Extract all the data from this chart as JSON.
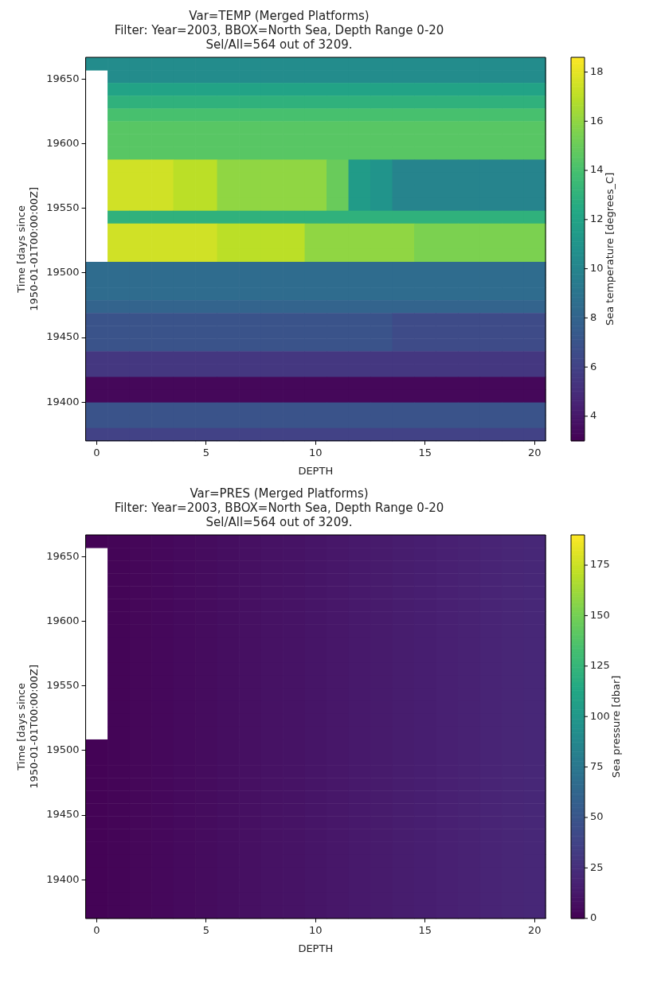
{
  "chart_data": [
    {
      "type": "heatmap",
      "title": "Var=TEMP (Merged Platforms)",
      "subtitle": "Filter: Year=2003, BBOX=North Sea, Depth Range 0-20\nSel/All=564 out of 3209.",
      "xlabel": "DEPTH",
      "ylabel": "Time [days since\n1950-01-01T00:00:00Z]",
      "clabel": "Sea temperature [degrees_C]",
      "x": [
        0,
        1,
        2,
        3,
        4,
        5,
        6,
        7,
        8,
        9,
        10,
        11,
        12,
        13,
        14,
        15,
        16,
        17,
        18,
        19,
        20
      ],
      "xlim": [
        -0.5,
        20.5
      ],
      "xticks": [
        0,
        5,
        10,
        15,
        20
      ],
      "ylim": [
        19370,
        19667
      ],
      "yticks": [
        19400,
        19450,
        19500,
        19550,
        19600,
        19650
      ],
      "clim": [
        3,
        18.6
      ],
      "cticks": [
        4,
        6,
        8,
        10,
        12,
        14,
        16,
        18
      ],
      "cells": [
        [
          10.5,
          10.5,
          10.5,
          10.5,
          10.5,
          10.5,
          10.5,
          10.5,
          10.5,
          10.5,
          10.5,
          10.5,
          10.5,
          10.5,
          10.5,
          10.5,
          10.5,
          10.5,
          10.5,
          10.5,
          10.5
        ],
        [
          null,
          10.5,
          10.5,
          10.5,
          10.5,
          10.5,
          10.5,
          10.5,
          10.5,
          10.5,
          10.5,
          10.5,
          10.5,
          10.5,
          10.5,
          10.5,
          10.5,
          10.5,
          10.5,
          10.5,
          10.5
        ],
        [
          null,
          12,
          12,
          12,
          12,
          12,
          12,
          12,
          12,
          12,
          12,
          12,
          12,
          12,
          12,
          12,
          12,
          12,
          12,
          12,
          12
        ],
        [
          null,
          13,
          13,
          13,
          13,
          13,
          13,
          13,
          13,
          13,
          13,
          13,
          13,
          13,
          13,
          13,
          13,
          13,
          13,
          13,
          13
        ],
        [
          null,
          14,
          14,
          14,
          14,
          14,
          14,
          14,
          14,
          14,
          14,
          14,
          14,
          14,
          14,
          14,
          14,
          14,
          14,
          14,
          14
        ],
        [
          null,
          14.5,
          14.5,
          14.5,
          14.5,
          14.5,
          14.5,
          14.5,
          14.5,
          14.5,
          14.5,
          14.5,
          14.5,
          14.5,
          14.5,
          14.5,
          14.5,
          14.5,
          14.5,
          14.5,
          14.5
        ],
        [
          null,
          14.5,
          14.5,
          14.5,
          14.5,
          14.5,
          14.5,
          14.5,
          14.5,
          14.5,
          14.5,
          14.5,
          14.5,
          14.5,
          14.5,
          14.5,
          14.5,
          14.5,
          14.5,
          14.5,
          14.5
        ],
        [
          null,
          14.5,
          14.5,
          14.5,
          14.5,
          14.5,
          14.5,
          14.5,
          14.5,
          14.5,
          14.5,
          14.5,
          14.5,
          14.5,
          14.5,
          14.5,
          14.5,
          14.5,
          14.5,
          14.5,
          14.5
        ],
        [
          null,
          17.5,
          17.5,
          17.5,
          17,
          17,
          16,
          16,
          16,
          16,
          16,
          15,
          11.5,
          11,
          10,
          10,
          10,
          10,
          10,
          10,
          10
        ],
        [
          null,
          17.5,
          17.5,
          17.5,
          17,
          17,
          16,
          16,
          16,
          16,
          16,
          15,
          11.5,
          11,
          10,
          10,
          10,
          10,
          10,
          10,
          10
        ],
        [
          null,
          17.5,
          17.5,
          17.5,
          17,
          17,
          16,
          16,
          16,
          16,
          16,
          15,
          11.5,
          11,
          10,
          10,
          10,
          10,
          10,
          10,
          10
        ],
        [
          null,
          17.5,
          17.5,
          17.5,
          17,
          17,
          16,
          16,
          16,
          16,
          16,
          15,
          11.5,
          11,
          10,
          10,
          10,
          10,
          10,
          10,
          10
        ],
        [
          null,
          13,
          13,
          13,
          13,
          13,
          13,
          13,
          13,
          13,
          13,
          13,
          13,
          13,
          13,
          13,
          13,
          13,
          13,
          13,
          13
        ],
        [
          null,
          17.5,
          17.5,
          17.5,
          17.5,
          17.5,
          17,
          17,
          17,
          17,
          16,
          16,
          16,
          16,
          16,
          15.5,
          15.5,
          15.5,
          15.5,
          15.5,
          15.5
        ],
        [
          null,
          17.5,
          17.5,
          17.5,
          17.5,
          17.5,
          17,
          17,
          17,
          17,
          16,
          16,
          16,
          16,
          16,
          15.5,
          15.5,
          15.5,
          15.5,
          15.5,
          15.5
        ],
        [
          null,
          17.5,
          17.5,
          17.5,
          17.5,
          17.5,
          17,
          17,
          17,
          17,
          16,
          16,
          16,
          16,
          16,
          15.5,
          15.5,
          15.5,
          15.5,
          15.5,
          15.5
        ],
        [
          8.5,
          8.5,
          8.5,
          8.5,
          8.5,
          8.5,
          8.5,
          8.5,
          8.5,
          8.5,
          8.5,
          8.5,
          8.5,
          8.5,
          8.5,
          8.5,
          8.5,
          8.5,
          8.5,
          8.5,
          8.5
        ],
        [
          8.5,
          8.5,
          8.5,
          8.5,
          8.5,
          8.5,
          8.5,
          8.5,
          8.5,
          8.5,
          8.5,
          8.5,
          8.5,
          8.5,
          8.5,
          8.5,
          8.5,
          8.5,
          8.5,
          8.5,
          8.5
        ],
        [
          8.5,
          8.5,
          8.5,
          8.5,
          8.5,
          8.5,
          8.5,
          8.5,
          8.5,
          8.5,
          8.5,
          8.5,
          8.5,
          8.5,
          8.5,
          8.5,
          8.5,
          8.5,
          8.5,
          8.5,
          8.5
        ],
        [
          8,
          8,
          8,
          8,
          8,
          8,
          8,
          8,
          8,
          8,
          8,
          8,
          8,
          8,
          8,
          8,
          8,
          8,
          8,
          8,
          8
        ],
        [
          7,
          7,
          7,
          7,
          7,
          7,
          7,
          7,
          7,
          7,
          7,
          7,
          7,
          7,
          6.5,
          6.5,
          6.5,
          6.5,
          6.5,
          6.5,
          6.5
        ],
        [
          7,
          7,
          7,
          7,
          7,
          7,
          7,
          7,
          7,
          7,
          7,
          7,
          7,
          7,
          6.5,
          6.5,
          6.5,
          6.5,
          6.5,
          6.5,
          6.5
        ],
        [
          7,
          7,
          7,
          7,
          7,
          7,
          7,
          7,
          7,
          7,
          7,
          7,
          7,
          7,
          6.5,
          6.5,
          6.5,
          6.5,
          6.5,
          6.5,
          6.5
        ],
        [
          5.5,
          5.5,
          5.5,
          5.5,
          5.5,
          5.5,
          5.5,
          5.5,
          5.5,
          5.5,
          5.5,
          5.5,
          5.5,
          5.5,
          5.5,
          5.5,
          5.5,
          5.5,
          5.5,
          5.5,
          5.5
        ],
        [
          5.5,
          5.5,
          5.5,
          5.5,
          5.5,
          5.5,
          5.5,
          5.5,
          5.5,
          5.5,
          5.5,
          5.5,
          5.5,
          5.5,
          5.5,
          5.5,
          5.5,
          5.5,
          5.5,
          5.5,
          5.5
        ],
        [
          3.3,
          3.3,
          3.3,
          3.3,
          3.3,
          3.3,
          3.3,
          3.3,
          3.3,
          3.3,
          3.3,
          3.3,
          3.3,
          3.3,
          3.3,
          3.3,
          3.3,
          3.3,
          3.3,
          3.3,
          3.3
        ],
        [
          3.3,
          3.3,
          3.3,
          3.3,
          3.3,
          3.3,
          3.3,
          3.3,
          3.3,
          3.3,
          3.3,
          3.3,
          3.3,
          3.3,
          3.3,
          3.3,
          3.3,
          3.3,
          3.3,
          3.3,
          3.3
        ],
        [
          7,
          7,
          7,
          7,
          7,
          7,
          7,
          7,
          7,
          7,
          7,
          7,
          7,
          7,
          7,
          7,
          7,
          7,
          7,
          7,
          7
        ],
        [
          7,
          7,
          7,
          7,
          7,
          7,
          7,
          7,
          7,
          7,
          7,
          7,
          7,
          7,
          7,
          7,
          7,
          7,
          7,
          7,
          7
        ],
        [
          6,
          6,
          6,
          6,
          6,
          6,
          6,
          6,
          6,
          6,
          6,
          6,
          6,
          6,
          6,
          6,
          6,
          6,
          6,
          6,
          6
        ]
      ]
    },
    {
      "type": "heatmap",
      "title": "Var=PRES (Merged Platforms)",
      "subtitle": "Filter: Year=2003, BBOX=North Sea, Depth Range 0-20\nSel/All=564 out of 3209.",
      "xlabel": "DEPTH",
      "ylabel": "Time [days since\n1950-01-01T00:00:00Z]",
      "clabel": "Sea pressure [dbar]",
      "x": [
        0,
        1,
        2,
        3,
        4,
        5,
        6,
        7,
        8,
        9,
        10,
        11,
        12,
        13,
        14,
        15,
        16,
        17,
        18,
        19,
        20
      ],
      "xlim": [
        -0.5,
        20.5
      ],
      "xticks": [
        0,
        5,
        10,
        15,
        20
      ],
      "ylim": [
        19370,
        19667
      ],
      "yticks": [
        19400,
        19450,
        19500,
        19550,
        19600,
        19650
      ],
      "clim": [
        0,
        190
      ],
      "cticks": [
        0,
        25,
        50,
        75,
        100,
        125,
        150,
        175
      ],
      "cells": [
        [
          1,
          2,
          3,
          4,
          5,
          6,
          7,
          8,
          9,
          10,
          11,
          12,
          13,
          14,
          15,
          16,
          17,
          18,
          19,
          20,
          21
        ],
        [
          null,
          2,
          3,
          4,
          5,
          6,
          7,
          8,
          9,
          10,
          11,
          12,
          13,
          14,
          15,
          16,
          17,
          18,
          19,
          20,
          21
        ],
        [
          null,
          2,
          3,
          4,
          5,
          6,
          7,
          8,
          9,
          10,
          11,
          12,
          13,
          14,
          15,
          16,
          17,
          18,
          19,
          20,
          21
        ],
        [
          null,
          2,
          3,
          4,
          5,
          6,
          7,
          8,
          9,
          10,
          11,
          12,
          13,
          14,
          15,
          16,
          17,
          18,
          19,
          20,
          21
        ],
        [
          null,
          2,
          3,
          4,
          5,
          6,
          7,
          8,
          9,
          10,
          11,
          12,
          13,
          14,
          15,
          16,
          17,
          18,
          19,
          20,
          21
        ],
        [
          null,
          2,
          3,
          4,
          5,
          6,
          7,
          8,
          9,
          10,
          11,
          12,
          13,
          14,
          15,
          16,
          17,
          18,
          19,
          20,
          21
        ],
        [
          null,
          2,
          3,
          4,
          5,
          6,
          7,
          8,
          9,
          10,
          11,
          12,
          13,
          14,
          15,
          16,
          17,
          18,
          19,
          20,
          21
        ],
        [
          null,
          2,
          3,
          4,
          5,
          6,
          7,
          8,
          9,
          10,
          11,
          12,
          13,
          14,
          15,
          16,
          17,
          18,
          19,
          20,
          21
        ],
        [
          null,
          2,
          3,
          4,
          5,
          6,
          7,
          8,
          9,
          10,
          11,
          12,
          13,
          14,
          15,
          16,
          17,
          18,
          19,
          20,
          21
        ],
        [
          null,
          2,
          3,
          4,
          5,
          6,
          7,
          8,
          9,
          10,
          11,
          12,
          13,
          14,
          15,
          16,
          17,
          18,
          19,
          20,
          21
        ],
        [
          null,
          2,
          3,
          4,
          5,
          6,
          7,
          8,
          9,
          10,
          11,
          12,
          13,
          14,
          15,
          16,
          17,
          18,
          19,
          20,
          21
        ],
        [
          null,
          2,
          3,
          4,
          5,
          6,
          7,
          8,
          9,
          10,
          11,
          12,
          13,
          14,
          15,
          16,
          17,
          18,
          19,
          20,
          21
        ],
        [
          null,
          2,
          3,
          4,
          5,
          6,
          7,
          8,
          9,
          10,
          11,
          12,
          13,
          14,
          15,
          16,
          17,
          18,
          19,
          20,
          21
        ],
        [
          null,
          2,
          3,
          4,
          5,
          6,
          7,
          8,
          9,
          10,
          11,
          12,
          13,
          14,
          15,
          16,
          17,
          18,
          19,
          20,
          21
        ],
        [
          null,
          2,
          3,
          4,
          5,
          6,
          7,
          8,
          9,
          10,
          11,
          12,
          13,
          14,
          15,
          16,
          17,
          18,
          19,
          20,
          21
        ],
        [
          null,
          2,
          3,
          4,
          5,
          6,
          7,
          8,
          9,
          10,
          11,
          12,
          13,
          14,
          15,
          16,
          17,
          18,
          19,
          20,
          21
        ],
        [
          1,
          2,
          3,
          4,
          5,
          6,
          7,
          8,
          9,
          10,
          11,
          12,
          13,
          14,
          15,
          16,
          17,
          18,
          19,
          20,
          21
        ],
        [
          1,
          2,
          3,
          4,
          5,
          6,
          7,
          8,
          9,
          10,
          11,
          12,
          13,
          14,
          15,
          16,
          17,
          18,
          19,
          20,
          21
        ],
        [
          1,
          2,
          3,
          4,
          5,
          6,
          7,
          8,
          9,
          10,
          11,
          12,
          13,
          14,
          15,
          16,
          17,
          18,
          19,
          20,
          21
        ],
        [
          1,
          2,
          3,
          4,
          5,
          6,
          7,
          8,
          9,
          10,
          11,
          12,
          13,
          14,
          15,
          16,
          17,
          18,
          19,
          20,
          21
        ],
        [
          1,
          2,
          3,
          4,
          5,
          6,
          7,
          8,
          9,
          10,
          11,
          12,
          13,
          14,
          15,
          16,
          17,
          18,
          19,
          20,
          21
        ],
        [
          1,
          2,
          3,
          4,
          5,
          6,
          7,
          8,
          9,
          10,
          11,
          12,
          13,
          14,
          15,
          16,
          17,
          18,
          19,
          20,
          21
        ],
        [
          1,
          2,
          3,
          4,
          5,
          6,
          7,
          8,
          9,
          10,
          11,
          12,
          13,
          14,
          15,
          16,
          17,
          18,
          19,
          20,
          21
        ],
        [
          1,
          2,
          3,
          4,
          5,
          6,
          7,
          8,
          9,
          10,
          11,
          12,
          13,
          14,
          15,
          16,
          17,
          18,
          19,
          20,
          21
        ],
        [
          1,
          2,
          3,
          4,
          5,
          6,
          7,
          8,
          9,
          10,
          11,
          12,
          13,
          14,
          15,
          16,
          17,
          18,
          19,
          20,
          21
        ],
        [
          1,
          2,
          3,
          4,
          5,
          6,
          7,
          8,
          9,
          10,
          11,
          12,
          13,
          14,
          15,
          16,
          17,
          18,
          19,
          20,
          21
        ],
        [
          1,
          2,
          3,
          4,
          5,
          6,
          7,
          8,
          9,
          10,
          11,
          12,
          13,
          14,
          15,
          16,
          17,
          18,
          19,
          20,
          21
        ],
        [
          1,
          2,
          3,
          4,
          5,
          6,
          7,
          8,
          9,
          10,
          11,
          12,
          13,
          14,
          15,
          16,
          17,
          18,
          19,
          20,
          21
        ],
        [
          1,
          2,
          3,
          4,
          5,
          6,
          7,
          8,
          9,
          10,
          11,
          12,
          13,
          14,
          15,
          16,
          17,
          18,
          19,
          20,
          21
        ],
        [
          1,
          2,
          3,
          4,
          5,
          6,
          7,
          8,
          9,
          10,
          11,
          12,
          13,
          14,
          15,
          16,
          17,
          18,
          19,
          20,
          21
        ]
      ]
    }
  ]
}
